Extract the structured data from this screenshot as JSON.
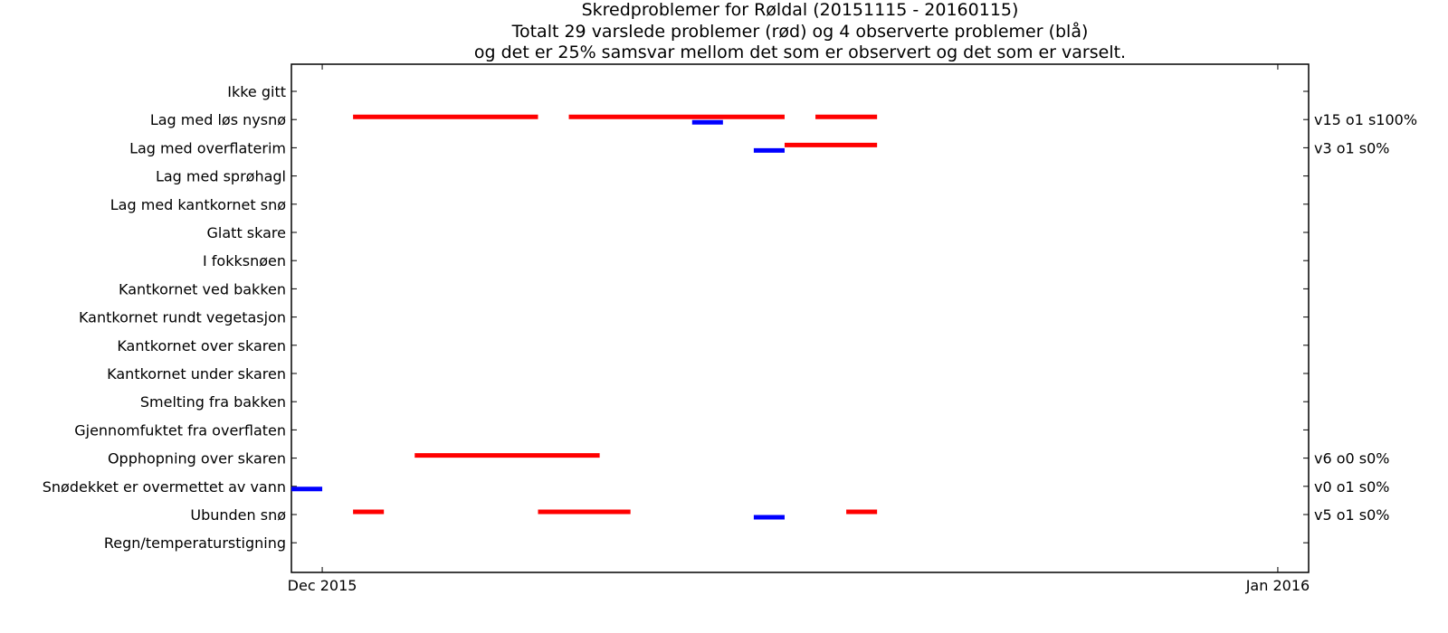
{
  "chart_data": {
    "type": "timeline",
    "title_lines": [
      "Skredproblemer for Røldal (20151115 - 20160115)",
      "Totalt 29 varslede problemer (rød) og 4 observerte problemer (blå)",
      "og det er 25% samsvar mellom det som er observert og det som er varselt."
    ],
    "categories": [
      "Ikke gitt",
      "Lag med løs nysnø",
      "Lag med overflaterim",
      "Lag med sprøhagl",
      "Lag med kantkornet snø",
      "Glatt skare",
      "I fokksnøen",
      "Kantkornet ved bakken",
      "Kantkornet rundt vegetasjon",
      "Kantkornet over skaren",
      "Kantkornet under skaren",
      "Smelting fra bakken",
      "Gjennomfuktet fra overflaten",
      "Opphopning over skaren",
      "Snødekket er overmettet av vann",
      "Ubunden snø",
      "Regn/temperaturstigning"
    ],
    "x_ticks": [
      {
        "date": "2015-12-01",
        "label": "Dec 2015"
      },
      {
        "date": "2016-01-01",
        "label": "Jan 2016"
      }
    ],
    "xlim": [
      "2015-11-30",
      "2016-01-02"
    ],
    "series": [
      {
        "name": "varslede",
        "color": "#ff0000",
        "segments": [
          {
            "category": "Lag med løs nysnø",
            "start": "2015-12-02",
            "end": "2015-12-08"
          },
          {
            "category": "Lag med løs nysnø",
            "start": "2015-12-09",
            "end": "2015-12-16"
          },
          {
            "category": "Lag med løs nysnø",
            "start": "2015-12-17",
            "end": "2015-12-19"
          },
          {
            "category": "Lag med overflaterim",
            "start": "2015-12-16",
            "end": "2015-12-19"
          },
          {
            "category": "Opphopning over skaren",
            "start": "2015-12-04",
            "end": "2015-12-10"
          },
          {
            "category": "Ubunden snø",
            "start": "2015-12-02",
            "end": "2015-12-03"
          },
          {
            "category": "Ubunden snø",
            "start": "2015-12-08",
            "end": "2015-12-11"
          },
          {
            "category": "Ubunden snø",
            "start": "2015-12-18",
            "end": "2015-12-19"
          }
        ]
      },
      {
        "name": "observerte",
        "color": "#0000ff",
        "segments": [
          {
            "category": "Lag med løs nysnø",
            "start": "2015-12-13",
            "end": "2015-12-14"
          },
          {
            "category": "Lag med overflaterim",
            "start": "2015-12-15",
            "end": "2015-12-16"
          },
          {
            "category": "Snødekket er overmettet av vann",
            "start": "2015-11-30",
            "end": "2015-12-01"
          },
          {
            "category": "Ubunden snø",
            "start": "2015-12-15",
            "end": "2015-12-16"
          }
        ]
      }
    ],
    "stats": [
      {
        "category": "Lag med løs nysnø",
        "text": "v15 o1 s100%"
      },
      {
        "category": "Lag med overflaterim",
        "text": "v3 o1 s0%"
      },
      {
        "category": "Opphopning over skaren",
        "text": "v6 o0 s0%"
      },
      {
        "category": "Snødekket er overmettet av vann",
        "text": "v0 o1 s0%"
      },
      {
        "category": "Ubunden snø",
        "text": "v5 o1 s0%"
      }
    ],
    "grid": false,
    "legend": "none"
  }
}
